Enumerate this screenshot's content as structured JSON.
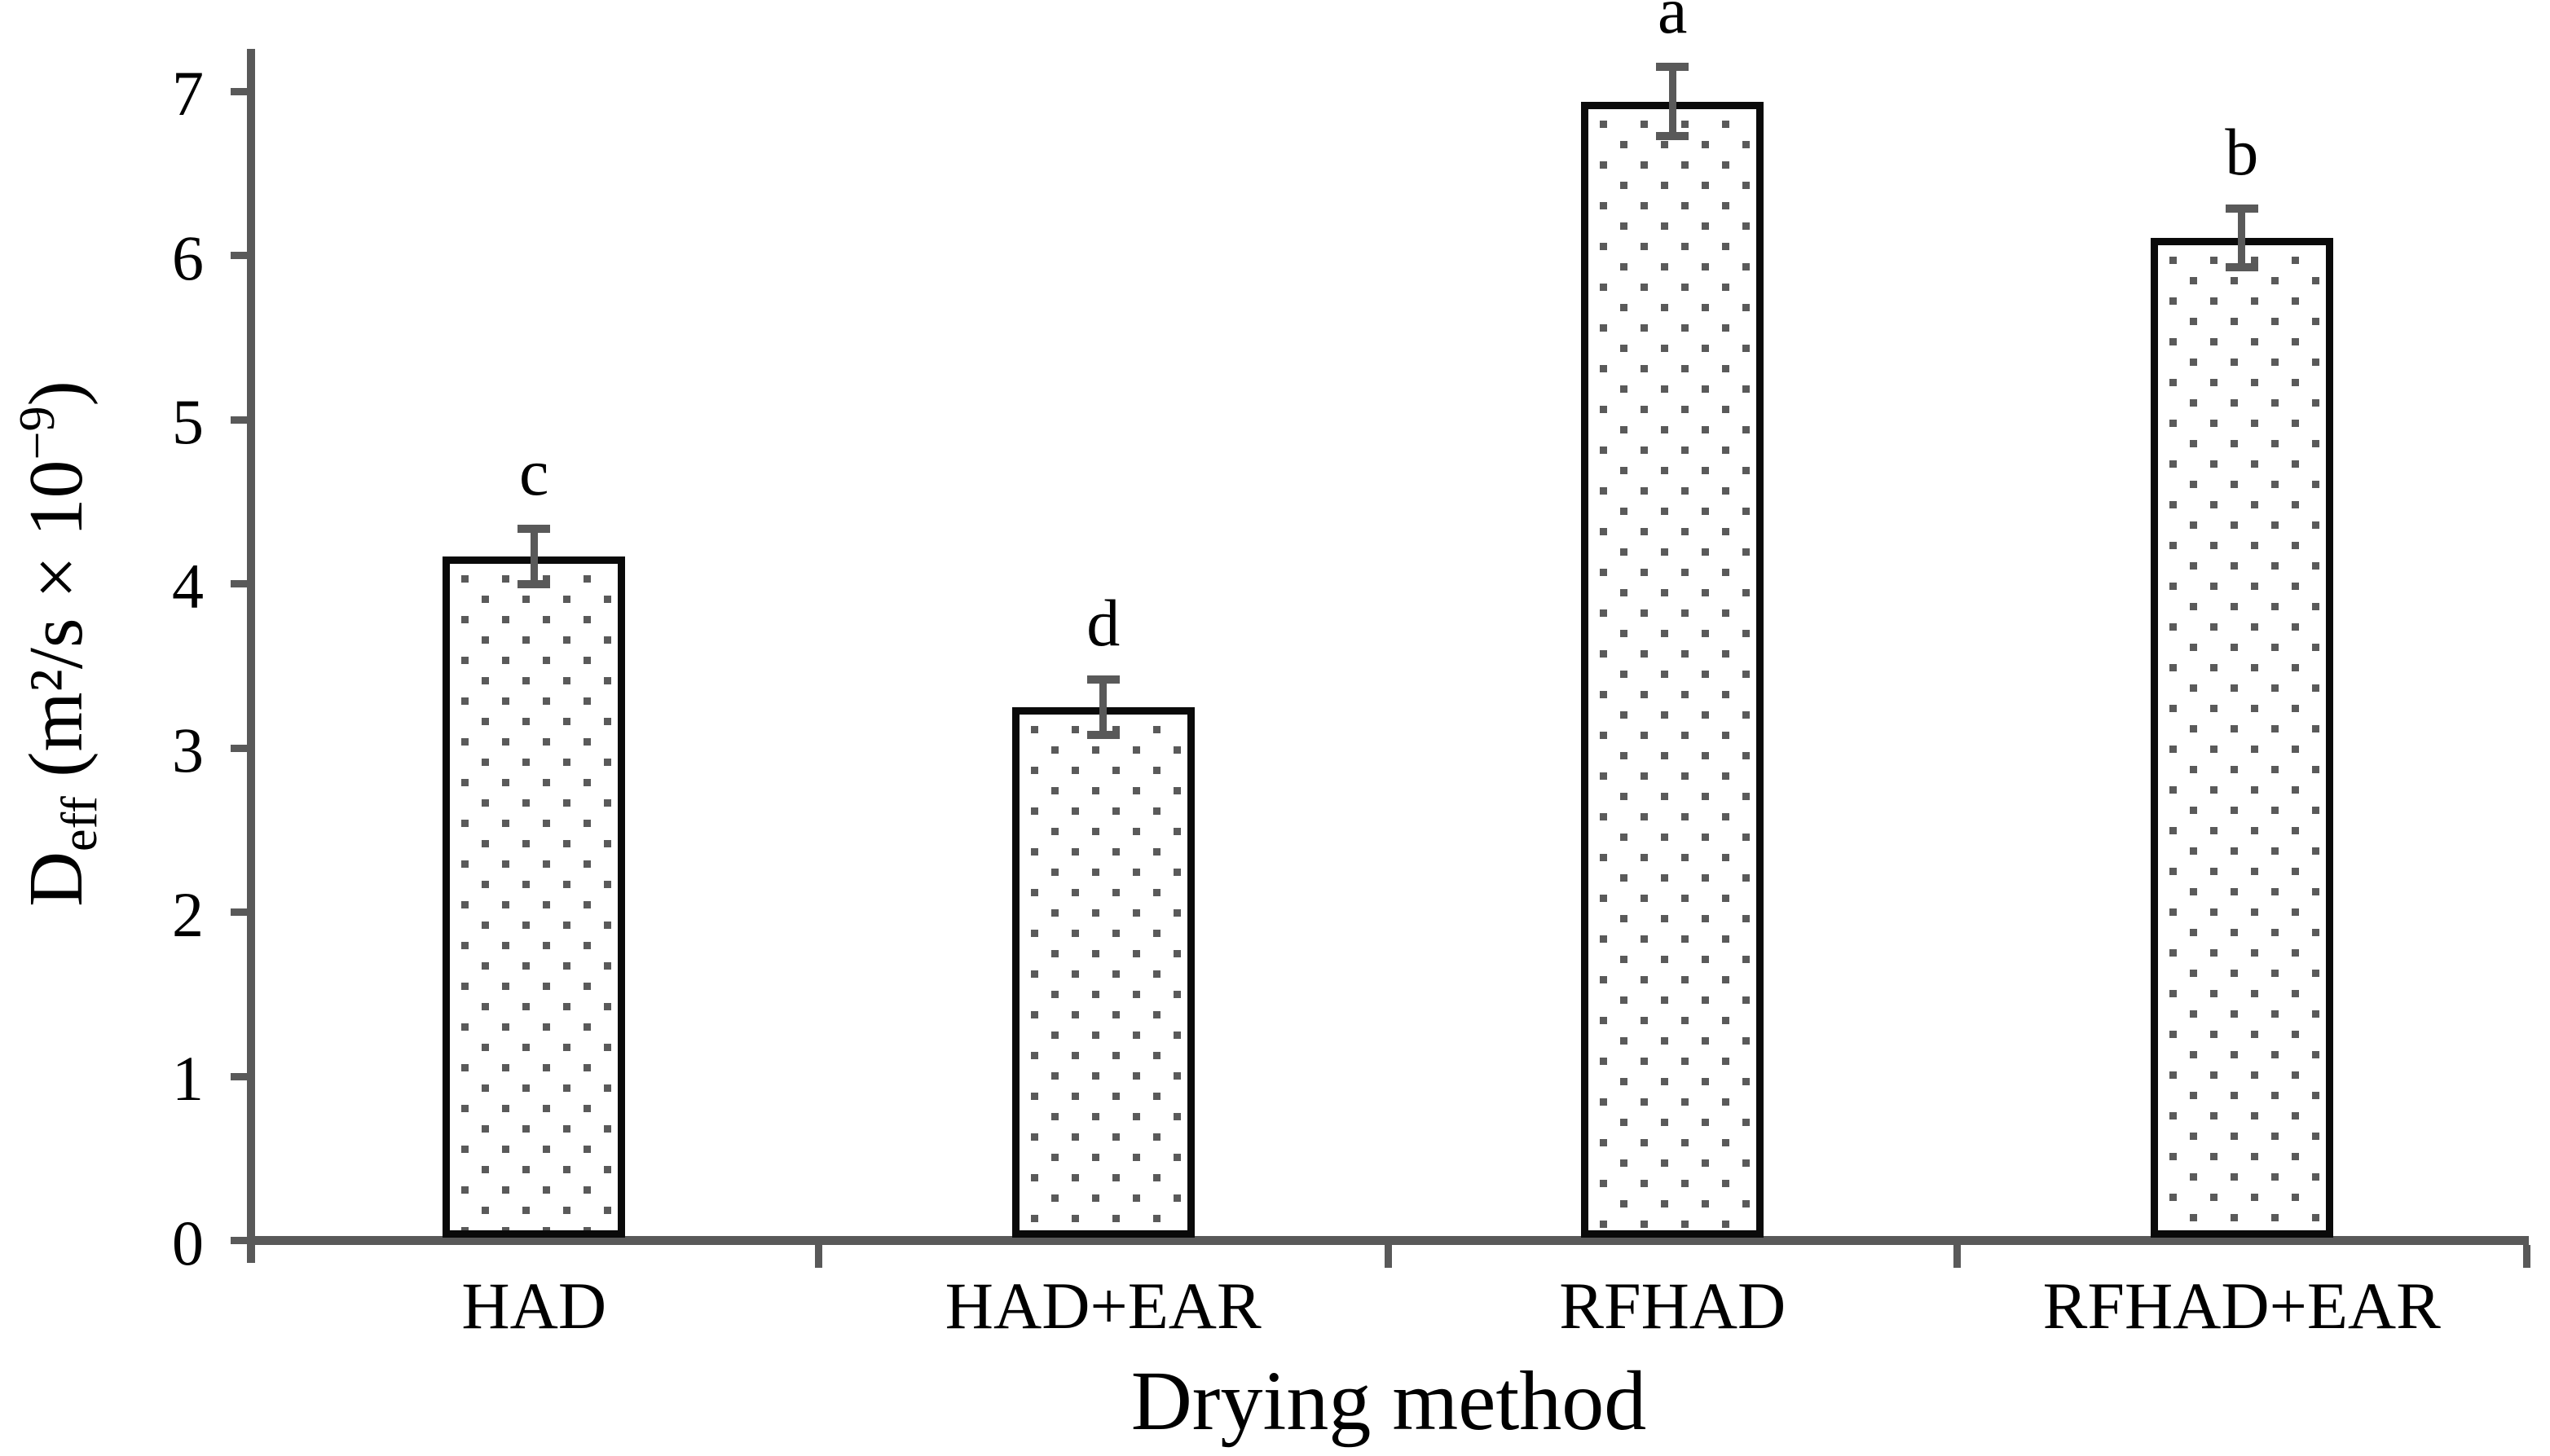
{
  "figure": {
    "background": "#ffffff",
    "description": "Bar chart of effective moisture diffusivity for four drying methods, dotted-pattern bars with error bars and significance letters"
  },
  "chart_data": {
    "type": "bar",
    "title": "",
    "xlabel": "Drying method",
    "ylabel": "D_eff (m²/s × 10⁻⁹)",
    "ylabel_parts": {
      "base": "D",
      "sub": "eff",
      "mid": " (m²/s × 10",
      "sup": "−9",
      "end": ")"
    },
    "categories": [
      "HAD",
      "HAD+EAR",
      "RFHAD",
      "RFHAD+EAR"
    ],
    "values": [
      4.14,
      3.22,
      6.91,
      6.08
    ],
    "error_bars": [
      0.17,
      0.17,
      0.21,
      0.18
    ],
    "bar_letters": [
      "c",
      "d",
      "a",
      "b"
    ],
    "yticks": [
      "0",
      "1",
      "2",
      "3",
      "4",
      "5",
      "6",
      "7"
    ],
    "ylim": [
      0,
      7.23
    ],
    "grid": false,
    "legend_position": "none",
    "bar_fill_style": "dotted-pattern",
    "colors": {
      "axis": "#595959",
      "error_bar": "#595959",
      "bar_border": "#0a0a0a",
      "bar_fill": "#ffffff",
      "dot": "#5a5a5a",
      "text": "#000000"
    }
  }
}
